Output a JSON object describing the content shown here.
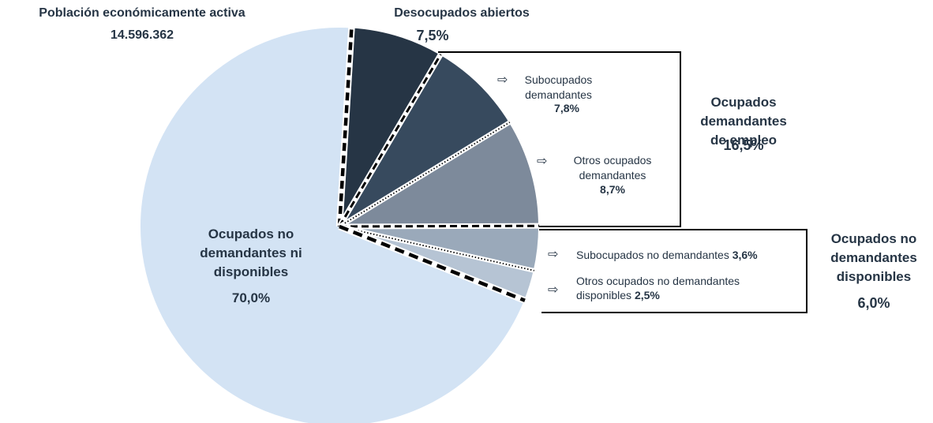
{
  "chart_data": {
    "type": "pie",
    "title": "Población económicamente activa",
    "total": 14596362,
    "total_label": "14.596.362",
    "categories": [
      "Desocupados abiertos",
      "Subocupados demandantes",
      "Otros ocupados demandantes",
      "Subocupados no demandantes",
      "Otros ocupados no demandantes disponibles",
      "Ocupados no demandantes ni disponibles"
    ],
    "values": [
      7.5,
      7.8,
      8.7,
      3.6,
      2.5,
      70.0
    ],
    "value_labels": [
      "7,5%",
      "7,8%",
      "8,7%",
      "3,6%",
      "2,5%",
      "70,0%"
    ],
    "colors": [
      "#263545",
      "#374a5e",
      "#7d8a9b",
      "#9aa9ba",
      "#b6c4d4",
      "#d3e3f4"
    ],
    "groups": [
      {
        "name": "Ocupados demandantes de empleo",
        "value": 16.5,
        "value_label": "16,5%"
      },
      {
        "name": "Ocupados no demandantes disponibles",
        "value": 6.0,
        "value_label": "6,0%"
      }
    ]
  }
}
